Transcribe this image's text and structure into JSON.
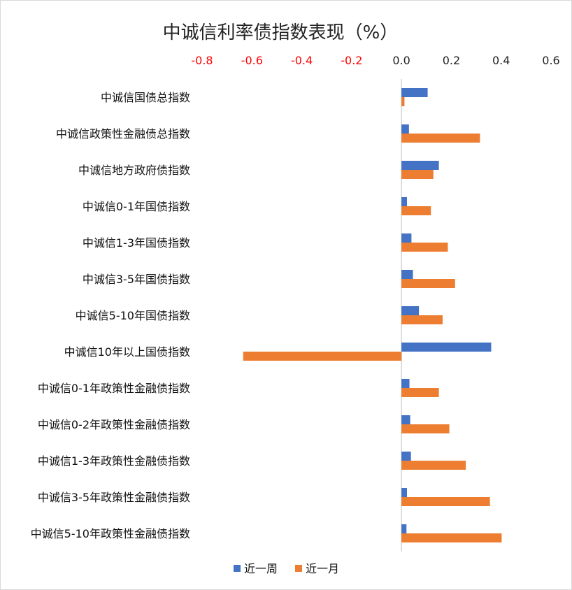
{
  "chart_data": {
    "type": "bar",
    "orientation": "horizontal",
    "title": "中诚信利率债指数表现（%）",
    "xlim": [
      -0.8,
      0.6
    ],
    "x_ticks": [
      "-0.8",
      "-0.6",
      "-0.4",
      "-0.2",
      "0.0",
      "0.2",
      "0.4",
      "0.6"
    ],
    "x_tick_values": [
      -0.8,
      -0.6,
      -0.4,
      -0.2,
      0.0,
      0.2,
      0.4,
      0.6
    ],
    "x_axis_position": "top",
    "negative_tick_color": "#ff0000",
    "positive_tick_color": "#222222",
    "grid": false,
    "legend_position": "bottom",
    "categories": [
      "中诚信国债总指数",
      "中诚信政策性金融债总指数",
      "中诚信地方政府债指数",
      "中诚信0-1年国债指数",
      "中诚信1-3年国债指数",
      "中诚信3-5年国债指数",
      "中诚信5-10年国债指数",
      "中诚信10年以上国债指数",
      "中诚信0-1年政策性金融债指数",
      "中诚信0-2年政策性金融债指数",
      "中诚信1-3年政策性金融债指数",
      "中诚信3-5年政策性金融债指数",
      "中诚信5-10年政策性金融债指数"
    ],
    "series": [
      {
        "name": "近一周",
        "color": "#4472c4",
        "values": [
          0.105,
          0.03,
          0.15,
          0.022,
          0.04,
          0.046,
          0.07,
          0.36,
          0.032,
          0.035,
          0.038,
          0.022,
          0.02
        ]
      },
      {
        "name": "近一月",
        "color": "#ed7d31",
        "values": [
          0.012,
          0.315,
          0.128,
          0.118,
          0.186,
          0.215,
          0.165,
          -0.635,
          0.15,
          0.192,
          0.258,
          0.355,
          0.402
        ]
      }
    ]
  }
}
